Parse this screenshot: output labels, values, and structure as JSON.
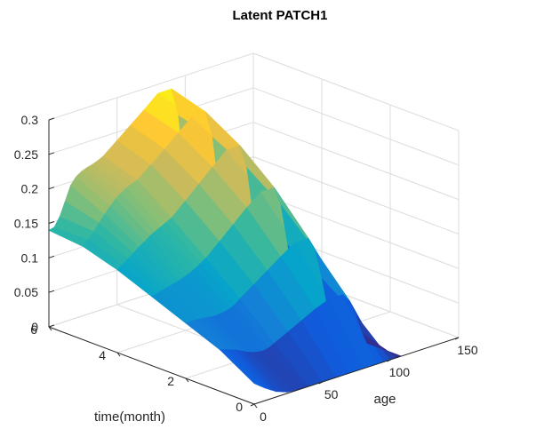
{
  "chart_data": {
    "type": "surface",
    "title": "Latent PATCH1",
    "xlabel": "age",
    "ylabel": "time(month)",
    "zlabel": "",
    "xlim": [
      0,
      150
    ],
    "ylim": [
      0,
      6
    ],
    "zlim": [
      0,
      0.3
    ],
    "xticks": [
      "0",
      "50",
      "100",
      "150"
    ],
    "yticks": [
      "0",
      "2",
      "4",
      "6"
    ],
    "zticks": [
      "0",
      "0.05",
      "0.1",
      "0.15",
      "0.2",
      "0.25",
      "0.3"
    ],
    "grid": true,
    "colormap": "parula",
    "colors": {
      "axes": "#262626",
      "grid": "#dcdcdc",
      "colormap_stops": [
        "#352a87",
        "#0f5cdd",
        "#1481d6",
        "#06a4ca",
        "#2eb7a4",
        "#87bf77",
        "#d1bb59",
        "#fec832",
        "#f9fb0e"
      ]
    },
    "series": [
      {
        "age": [
          0,
          4,
          8,
          12,
          16,
          20,
          24,
          28,
          32,
          36,
          40,
          50,
          60,
          70,
          80,
          90,
          95,
          100,
          105,
          108
        ],
        "time": [
          0,
          1,
          2,
          3,
          4,
          5,
          6
        ],
        "z": [
          [
            0.03,
            0.024,
            0.018,
            0.013,
            0.008,
            0.005,
            0.002,
            0.001,
            0,
            0,
            0,
            0,
            0,
            0,
            0,
            0,
            0,
            0,
            0,
            0
          ],
          [
            0.06,
            0.058,
            0.055,
            0.052,
            0.048,
            0.044,
            0.041,
            0.039,
            0.038,
            0.04,
            0.044,
            0.054,
            0.064,
            0.074,
            0.082,
            0.082,
            0.07,
            0.045,
            0.015,
            0
          ],
          [
            0.08,
            0.08,
            0.08,
            0.079,
            0.078,
            0.077,
            0.077,
            0.078,
            0.08,
            0.084,
            0.09,
            0.104,
            0.118,
            0.132,
            0.145,
            0.145,
            0.124,
            0.08,
            0.026,
            0
          ],
          [
            0.1,
            0.102,
            0.104,
            0.106,
            0.108,
            0.11,
            0.113,
            0.116,
            0.12,
            0.125,
            0.13,
            0.148,
            0.166,
            0.184,
            0.2,
            0.2,
            0.171,
            0.11,
            0.036,
            0
          ],
          [
            0.12,
            0.125,
            0.131,
            0.137,
            0.143,
            0.148,
            0.154,
            0.158,
            0.162,
            0.166,
            0.17,
            0.188,
            0.206,
            0.224,
            0.242,
            0.242,
            0.207,
            0.133,
            0.044,
            0
          ],
          [
            0.135,
            0.143,
            0.152,
            0.162,
            0.172,
            0.181,
            0.189,
            0.195,
            0.2,
            0.203,
            0.206,
            0.222,
            0.238,
            0.255,
            0.272,
            0.272,
            0.232,
            0.15,
            0.049,
            0
          ],
          [
            0.14,
            0.142,
            0.155,
            0.175,
            0.195,
            0.205,
            0.21,
            0.213,
            0.215,
            0.218,
            0.222,
            0.238,
            0.254,
            0.27,
            0.287,
            0.287,
            0.245,
            0.158,
            0.052,
            0
          ]
        ]
      }
    ]
  }
}
